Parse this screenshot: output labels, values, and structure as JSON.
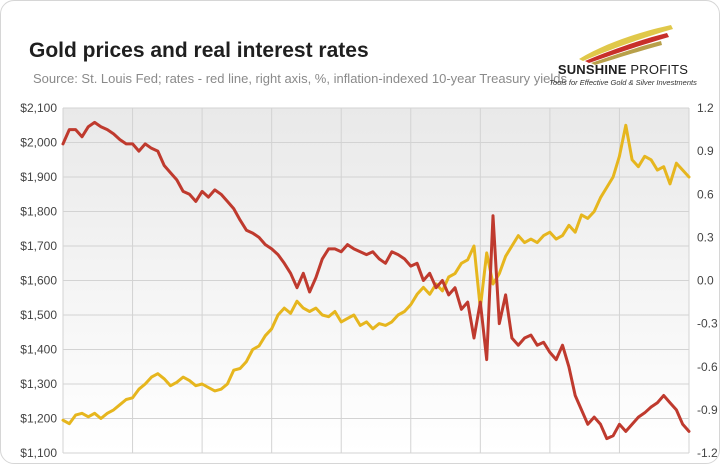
{
  "header": {
    "title": "Gold prices and real interest rates",
    "subtitle": "Source: St. Louis Fed; rates - red line, right axis, %, inflation-indexed 10-year Treasury yields"
  },
  "logo": {
    "name_bold": "SUNSHINE",
    "name_light": "PROFITS",
    "tagline": "Tools for Effective Gold & Silver Investments"
  },
  "colors": {
    "gold_series": "#e6b61e",
    "rates_series": "#bf3a2e",
    "grid": "#d3d3d3",
    "plot_bg_top": "#e9e9e9",
    "plot_bg_bottom": "#ffffff"
  },
  "chart_data": {
    "type": "line",
    "title": "Gold prices and real interest rates",
    "x_points": 100,
    "grid": true,
    "left_axis": {
      "ylim": [
        1100,
        2100
      ],
      "ticks": [
        2100,
        2000,
        1900,
        1800,
        1700,
        1600,
        1500,
        1400,
        1300,
        1200,
        1100
      ],
      "tick_labels": [
        "$2,100",
        "$2,000",
        "$1,900",
        "$1,800",
        "$1,700",
        "$1,600",
        "$1,500",
        "$1,400",
        "$1,300",
        "$1,200",
        "$1,100"
      ]
    },
    "right_axis": {
      "ylim": [
        -1.2,
        1.2
      ],
      "ticks": [
        1.2,
        0.9,
        0.6,
        0.3,
        0.0,
        -0.3,
        -0.6,
        -0.9,
        -1.2
      ],
      "tick_labels": [
        "1.2",
        "0.9",
        "0.6",
        "0.3",
        "0.0",
        "-0.3",
        "-0.6",
        "-0.9",
        "-1.2"
      ]
    },
    "series": [
      {
        "name": "Gold price",
        "axis": "left",
        "values": [
          1195,
          1185,
          1210,
          1215,
          1205,
          1215,
          1200,
          1215,
          1225,
          1240,
          1255,
          1260,
          1285,
          1300,
          1320,
          1330,
          1315,
          1295,
          1305,
          1320,
          1310,
          1295,
          1300,
          1290,
          1280,
          1285,
          1300,
          1340,
          1345,
          1365,
          1400,
          1410,
          1440,
          1460,
          1500,
          1520,
          1505,
          1540,
          1520,
          1510,
          1520,
          1500,
          1495,
          1510,
          1480,
          1490,
          1500,
          1470,
          1480,
          1460,
          1475,
          1470,
          1480,
          1500,
          1510,
          1530,
          1560,
          1580,
          1560,
          1590,
          1570,
          1610,
          1620,
          1650,
          1660,
          1700,
          1520,
          1680,
          1590,
          1620,
          1670,
          1700,
          1730,
          1710,
          1720,
          1710,
          1730,
          1740,
          1720,
          1730,
          1760,
          1740,
          1790,
          1780,
          1800,
          1840,
          1870,
          1900,
          1960,
          2050,
          1950,
          1930,
          1960,
          1950,
          1920,
          1930,
          1880,
          1940,
          1920,
          1900
        ]
      },
      {
        "name": "Real interest rate",
        "axis": "right",
        "values": [
          0.95,
          1.05,
          1.05,
          1.0,
          1.07,
          1.1,
          1.07,
          1.05,
          1.02,
          0.98,
          0.95,
          0.95,
          0.9,
          0.95,
          0.92,
          0.9,
          0.8,
          0.75,
          0.7,
          0.62,
          0.6,
          0.55,
          0.62,
          0.58,
          0.63,
          0.6,
          0.55,
          0.5,
          0.42,
          0.35,
          0.33,
          0.3,
          0.25,
          0.22,
          0.18,
          0.12,
          0.05,
          -0.05,
          0.05,
          -0.08,
          0.02,
          0.15,
          0.22,
          0.22,
          0.2,
          0.25,
          0.22,
          0.2,
          0.18,
          0.2,
          0.15,
          0.12,
          0.2,
          0.18,
          0.15,
          0.1,
          0.12,
          0.0,
          0.05,
          -0.05,
          0.0,
          -0.1,
          -0.05,
          -0.2,
          -0.15,
          -0.4,
          -0.15,
          -0.55,
          0.45,
          -0.3,
          -0.1,
          -0.4,
          -0.45,
          -0.4,
          -0.38,
          -0.45,
          -0.43,
          -0.5,
          -0.55,
          -0.45,
          -0.6,
          -0.8,
          -0.9,
          -1.0,
          -0.95,
          -1.0,
          -1.1,
          -1.08,
          -1.0,
          -1.05,
          -1.0,
          -0.95,
          -0.92,
          -0.88,
          -0.85,
          -0.8,
          -0.85,
          -0.9,
          -1.0,
          -1.05
        ]
      }
    ]
  }
}
